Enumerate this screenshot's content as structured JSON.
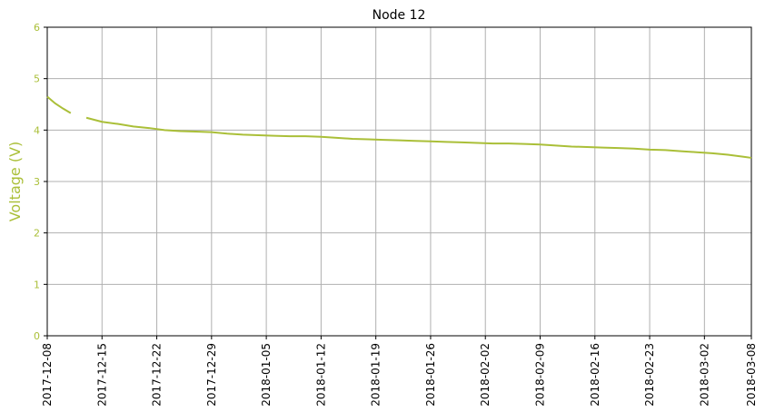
{
  "chart_data": {
    "type": "line",
    "title": "Node 12",
    "ylabel": "Voltage (V)",
    "x": [
      "2017-12-08",
      "2017-12-09",
      "2017-12-10",
      "2017-12-11",
      "2017-12-12",
      "2017-12-13",
      "2017-12-15",
      "2017-12-17",
      "2017-12-19",
      "2017-12-21",
      "2017-12-23",
      "2017-12-25",
      "2017-12-27",
      "2017-12-29",
      "2017-12-31",
      "2018-01-02",
      "2018-01-04",
      "2018-01-06",
      "2018-01-08",
      "2018-01-10",
      "2018-01-12",
      "2018-01-14",
      "2018-01-16",
      "2018-01-18",
      "2018-01-20",
      "2018-01-22",
      "2018-01-24",
      "2018-01-26",
      "2018-01-28",
      "2018-01-30",
      "2018-02-01",
      "2018-02-03",
      "2018-02-05",
      "2018-02-07",
      "2018-02-09",
      "2018-02-11",
      "2018-02-13",
      "2018-02-15",
      "2018-02-17",
      "2018-02-19",
      "2018-02-21",
      "2018-02-23",
      "2018-02-25",
      "2018-02-27",
      "2018-03-01",
      "2018-03-03",
      "2018-03-05",
      "2018-03-07",
      "2018-03-08"
    ],
    "series": [
      {
        "name": "Voltage",
        "color": "#aabf38",
        "values": [
          4.65,
          4.52,
          4.42,
          4.33,
          null,
          4.24,
          4.16,
          4.12,
          4.07,
          4.04,
          4.0,
          3.98,
          3.97,
          3.96,
          3.93,
          3.91,
          3.9,
          3.89,
          3.88,
          3.88,
          3.87,
          3.85,
          3.83,
          3.82,
          3.81,
          3.8,
          3.79,
          3.78,
          3.77,
          3.76,
          3.75,
          3.74,
          3.74,
          3.73,
          3.72,
          3.7,
          3.68,
          3.67,
          3.66,
          3.65,
          3.64,
          3.62,
          3.61,
          3.59,
          3.57,
          3.55,
          3.52,
          3.48,
          3.46
        ]
      }
    ],
    "xlim": [
      "2017-12-08",
      "2018-03-08"
    ],
    "xticks": [
      "2017-12-08",
      "2017-12-15",
      "2017-12-22",
      "2017-12-29",
      "2018-01-05",
      "2018-01-12",
      "2018-01-19",
      "2018-01-26",
      "2018-02-02",
      "2018-02-09",
      "2018-02-16",
      "2018-02-23",
      "2018-03-02",
      "2018-03-08"
    ],
    "ylim": [
      0,
      6
    ],
    "yticks": [
      0,
      1,
      2,
      3,
      4,
      5,
      6
    ],
    "grid": true
  }
}
